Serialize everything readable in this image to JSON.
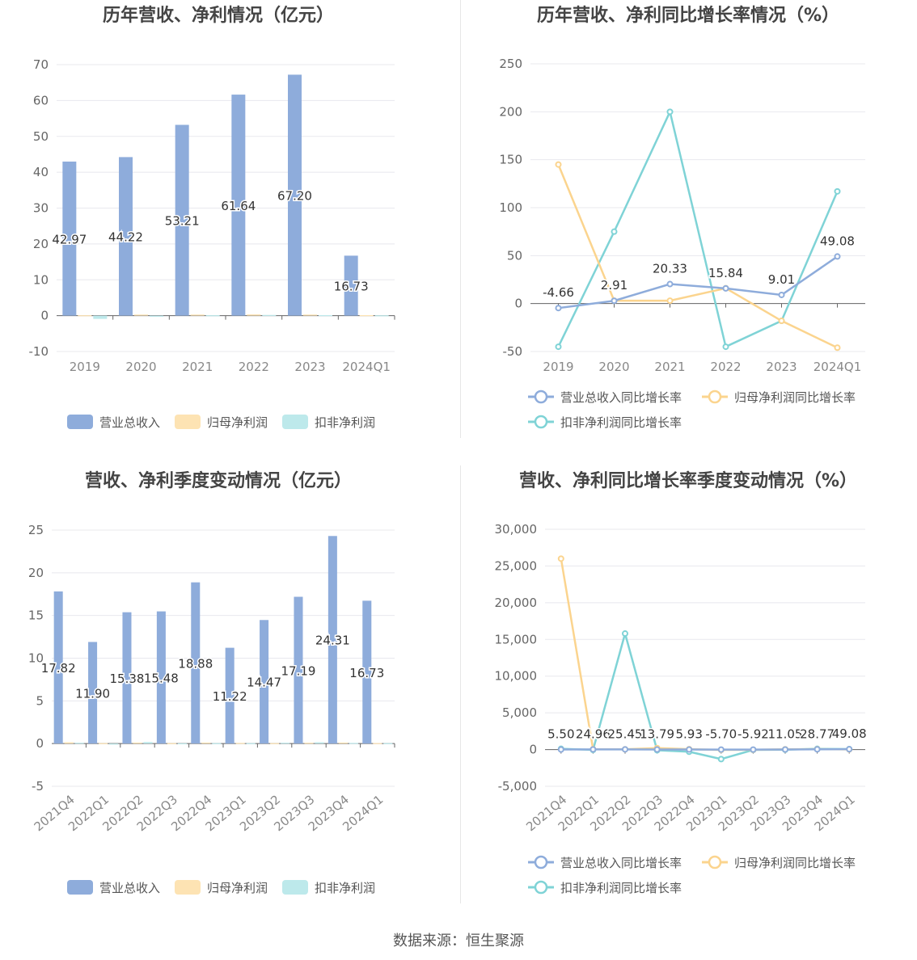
{
  "source": "数据来源：恒生聚源",
  "colors": {
    "revenue": "#8eacdb",
    "net": "#fde3b3",
    "deducted": "#bde9eb",
    "rev_line": "#8eacdb",
    "net_line": "#fbd48e",
    "ded_line": "#7fd3d6"
  },
  "charts": [
    {
      "id": "annual-bar",
      "chart_data": {
        "type": "bar",
        "title": "历年营收、净利情况（亿元）",
        "categories": [
          "2019",
          "2020",
          "2021",
          "2022",
          "2023",
          "2024Q1"
        ],
        "series": [
          {
            "name": "营业总收入",
            "values": [
              42.97,
              44.22,
              53.21,
              61.64,
              67.2,
              16.73
            ],
            "labels": [
              "42.97",
              "44.22",
              "53.21",
              "61.64",
              "67.20",
              "16.73"
            ]
          },
          {
            "name": "归母净利润",
            "values": [
              0.12,
              0.3,
              0.3,
              0.35,
              0.3,
              0.15
            ]
          },
          {
            "name": "扣非净利润",
            "values": [
              -0.9,
              -0.3,
              0.12,
              0.2,
              0.15,
              0.1
            ]
          }
        ],
        "yticks": [
          "70",
          "60",
          "50",
          "40",
          "30",
          "20",
          "10",
          "0",
          "-10"
        ],
        "ylim": [
          -10,
          70
        ],
        "grid": true,
        "legend": "bottom"
      }
    },
    {
      "id": "annual-growth",
      "chart_data": {
        "type": "line",
        "title": "历年营收、净利同比增长率情况（%）",
        "categories": [
          "2019",
          "2020",
          "2021",
          "2022",
          "2023",
          "2024Q1"
        ],
        "series": [
          {
            "name": "营业总收入同比增长率",
            "values": [
              -4.66,
              2.91,
              20.33,
              15.84,
              9.01,
              49.08
            ],
            "labels": [
              "-4.66",
              "2.91",
              "20.33",
              "15.84",
              "9.01",
              "49.08"
            ]
          },
          {
            "name": "归母净利润同比增长率",
            "values": [
              145,
              3,
              3,
              16,
              -18,
              -46
            ]
          },
          {
            "name": "扣非净利润同比增长率",
            "values": [
              -45,
              75,
              200,
              -45,
              -18,
              117
            ]
          }
        ],
        "yticks": [
          "250",
          "200",
          "150",
          "100",
          "50",
          "0",
          "-50"
        ],
        "ylim": [
          -50,
          250
        ],
        "grid": true,
        "legend": "bottom"
      }
    },
    {
      "id": "quarter-bar",
      "chart_data": {
        "type": "bar",
        "title": "营收、净利季度变动情况（亿元）",
        "categories": [
          "2021Q4",
          "2022Q1",
          "2022Q2",
          "2022Q3",
          "2022Q4",
          "2023Q1",
          "2023Q2",
          "2023Q3",
          "2023Q4",
          "2024Q1"
        ],
        "series": [
          {
            "name": "营业总收入",
            "values": [
              17.82,
              11.9,
              15.38,
              15.48,
              18.88,
              11.22,
              14.47,
              17.19,
              24.31,
              16.73
            ],
            "labels": [
              "17.82",
              "11.90",
              "15.38",
              "15.48",
              "18.88",
              "11.22",
              "14.47",
              "17.19",
              "24.31",
              "16.73"
            ]
          },
          {
            "name": "归母净利润",
            "values": [
              0.15,
              0.05,
              0.12,
              0.05,
              0.12,
              0.08,
              0.05,
              0.1,
              0.12,
              0.06
            ]
          },
          {
            "name": "扣非净利润",
            "values": [
              0.1,
              -0.05,
              0.18,
              0.03,
              0.05,
              0.05,
              0.1,
              0.15,
              0.08,
              0.05
            ]
          }
        ],
        "yticks": [
          "25",
          "20",
          "15",
          "10",
          "5",
          "0",
          "-5"
        ],
        "ylim": [
          -5,
          25
        ],
        "grid": true,
        "legend": "bottom"
      }
    },
    {
      "id": "quarter-growth",
      "chart_data": {
        "type": "line",
        "title": "营收、净利同比增长率季度变动情况（%）",
        "categories": [
          "2021Q4",
          "2022Q1",
          "2022Q2",
          "2022Q3",
          "2022Q4",
          "2023Q1",
          "2023Q2",
          "2023Q3",
          "2023Q4",
          "2024Q1"
        ],
        "series": [
          {
            "name": "营业总收入同比增长率",
            "values": [
              5.5,
              24.96,
              25.45,
              13.79,
              5.93,
              -5.7,
              -5.92,
              11.05,
              28.77,
              49.08
            ],
            "labels": [
              "5.50",
              "24.96",
              "25.45",
              "13.79",
              "5.93",
              "-5.70",
              "-5.92",
              "11.05",
              "28.77",
              "49.08"
            ]
          },
          {
            "name": "归母净利润同比增长率",
            "values": [
              26000,
              50,
              30,
              200,
              50,
              -50,
              -40,
              40,
              50,
              20
            ]
          },
          {
            "name": "扣非净利润同比增长率",
            "values": [
              100,
              -50,
              15800,
              -100,
              -300,
              -1300,
              -50,
              -20,
              100,
              60
            ]
          }
        ],
        "yticks": [
          "30,000",
          "25,000",
          "20,000",
          "15,000",
          "10,000",
          "5,000",
          "0",
          "-5,000"
        ],
        "ylim": [
          -5000,
          30000
        ],
        "grid": true,
        "legend": "bottom"
      }
    }
  ]
}
